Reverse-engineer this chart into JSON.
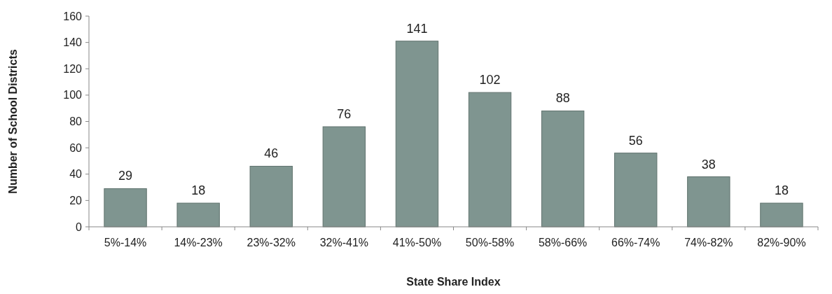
{
  "chart_data": {
    "type": "bar",
    "xlabel": "State Share Index",
    "ylabel": "Number of School Districts",
    "categories": [
      "5%-14%",
      "14%-23%",
      "23%-32%",
      "32%-41%",
      "41%-50%",
      "50%-58%",
      "58%-66%",
      "66%-74%",
      "74%-82%",
      "82%-90%"
    ],
    "values": [
      29,
      18,
      46,
      76,
      141,
      102,
      88,
      56,
      38,
      18
    ],
    "color": "#7f9590",
    "ylim": [
      0,
      160
    ],
    "yticks": [
      0,
      20,
      40,
      60,
      80,
      100,
      120,
      140,
      160
    ],
    "data_labels": true
  }
}
